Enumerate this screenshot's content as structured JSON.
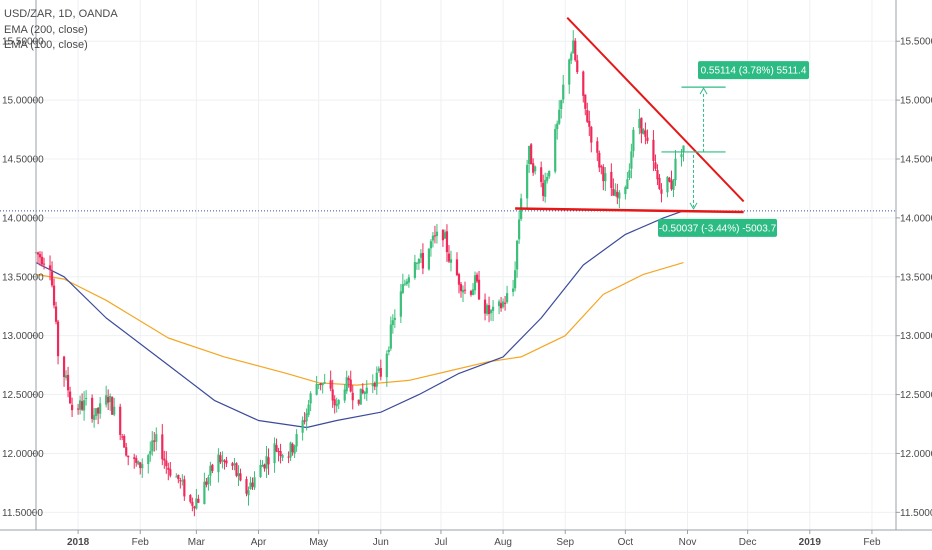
{
  "header": {
    "symbol_line": "USD/ZAR, 1D, OANDA",
    "ema200_label": "EMA (200, close)",
    "ema100_label": "EMA (100, close)"
  },
  "colors": {
    "up": "#3bbf7b",
    "down": "#ef2a5a",
    "ema200": "#f5a623",
    "ema100": "#3b4b9c",
    "trendline": "#e61717",
    "measure": "#2dbb84",
    "gridline": "#eef0f3",
    "axis_text": "#4a4a4a"
  },
  "chart_data": {
    "type": "candlestick",
    "title": "USD/ZAR, 1D, OANDA",
    "ylim": [
      11.35,
      15.85
    ],
    "y_ticks": [
      "15.50000",
      "15.00000",
      "14.50000",
      "14.00000",
      "13.50000",
      "13.00000",
      "12.50000",
      "12.00000",
      "11.50000"
    ],
    "y_tick_values": [
      15.5,
      15.0,
      14.5,
      14.0,
      13.5,
      13.0,
      12.5,
      12.0,
      11.5
    ],
    "x_ticks": [
      {
        "label": "2018",
        "date": "2018-01-01",
        "bold": true
      },
      {
        "label": "Feb",
        "date": "2018-02-01",
        "bold": false
      },
      {
        "label": "Mar",
        "date": "2018-03-01",
        "bold": false
      },
      {
        "label": "Apr",
        "date": "2018-04-01",
        "bold": false
      },
      {
        "label": "May",
        "date": "2018-05-01",
        "bold": false
      },
      {
        "label": "Jun",
        "date": "2018-06-01",
        "bold": false
      },
      {
        "label": "Jul",
        "date": "2018-07-01",
        "bold": false
      },
      {
        "label": "Aug",
        "date": "2018-08-01",
        "bold": false
      },
      {
        "label": "Sep",
        "date": "2018-09-01",
        "bold": false
      },
      {
        "label": "Oct",
        "date": "2018-10-01",
        "bold": false
      },
      {
        "label": "Nov",
        "date": "2018-11-01",
        "bold": false
      },
      {
        "label": "Dec",
        "date": "2018-12-01",
        "bold": false
      },
      {
        "label": "2019",
        "date": "2019-01-01",
        "bold": true
      },
      {
        "label": "Feb",
        "date": "2019-02-01",
        "bold": false
      }
    ],
    "price_path": [
      [
        "2017-12-11",
        13.7
      ],
      [
        "2017-12-18",
        13.62
      ],
      [
        "2017-12-20",
        13.25
      ],
      [
        "2017-12-22",
        12.85
      ],
      [
        "2017-12-27",
        12.55
      ],
      [
        "2017-12-29",
        12.38
      ],
      [
        "2018-01-05",
        12.42
      ],
      [
        "2018-01-10",
        12.32
      ],
      [
        "2018-01-16",
        12.48
      ],
      [
        "2018-01-22",
        12.22
      ],
      [
        "2018-01-26",
        11.98
      ],
      [
        "2018-01-31",
        11.88
      ],
      [
        "2018-02-06",
        12.02
      ],
      [
        "2018-02-10",
        12.12
      ],
      [
        "2018-02-14",
        11.9
      ],
      [
        "2018-02-20",
        11.78
      ],
      [
        "2018-02-26",
        11.58
      ],
      [
        "2018-03-02",
        11.62
      ],
      [
        "2018-03-07",
        11.8
      ],
      [
        "2018-03-12",
        11.96
      ],
      [
        "2018-03-16",
        11.9
      ],
      [
        "2018-03-20",
        11.88
      ],
      [
        "2018-03-23",
        11.72
      ],
      [
        "2018-03-26",
        11.68
      ],
      [
        "2018-04-02",
        11.88
      ],
      [
        "2018-04-09",
        12.05
      ],
      [
        "2018-04-16",
        12.0
      ],
      [
        "2018-04-20",
        12.12
      ],
      [
        "2018-04-25",
        12.35
      ],
      [
        "2018-04-28",
        12.55
      ],
      [
        "2018-05-01",
        12.62
      ],
      [
        "2018-05-06",
        12.55
      ],
      [
        "2018-05-10",
        12.38
      ],
      [
        "2018-05-14",
        12.6
      ],
      [
        "2018-05-18",
        12.52
      ],
      [
        "2018-05-22",
        12.48
      ],
      [
        "2018-05-28",
        12.62
      ],
      [
        "2018-06-01",
        12.68
      ],
      [
        "2018-06-05",
        12.95
      ],
      [
        "2018-06-08",
        13.18
      ],
      [
        "2018-06-13",
        13.45
      ],
      [
        "2018-06-18",
        13.68
      ],
      [
        "2018-06-22",
        13.62
      ],
      [
        "2018-06-26",
        13.78
      ],
      [
        "2018-07-02",
        13.88
      ],
      [
        "2018-07-06",
        13.6
      ],
      [
        "2018-07-10",
        13.48
      ],
      [
        "2018-07-14",
        13.35
      ],
      [
        "2018-07-18",
        13.45
      ],
      [
        "2018-07-24",
        13.2
      ],
      [
        "2018-07-28",
        13.18
      ],
      [
        "2018-08-01",
        13.28
      ],
      [
        "2018-08-06",
        13.4
      ],
      [
        "2018-08-08",
        13.8
      ],
      [
        "2018-08-10",
        14.2
      ],
      [
        "2018-08-14",
        14.55
      ],
      [
        "2018-08-17",
        14.4
      ],
      [
        "2018-08-21",
        14.25
      ],
      [
        "2018-08-24",
        14.45
      ],
      [
        "2018-08-29",
        14.85
      ],
      [
        "2018-09-02",
        15.35
      ],
      [
        "2018-09-05",
        15.45
      ],
      [
        "2018-09-08",
        15.1
      ],
      [
        "2018-09-12",
        14.85
      ],
      [
        "2018-09-16",
        14.55
      ],
      [
        "2018-09-20",
        14.38
      ],
      [
        "2018-09-24",
        14.2
      ],
      [
        "2018-09-28",
        14.15
      ],
      [
        "2018-10-02",
        14.35
      ],
      [
        "2018-10-05",
        14.7
      ],
      [
        "2018-10-08",
        14.85
      ],
      [
        "2018-10-11",
        14.65
      ],
      [
        "2018-10-15",
        14.45
      ],
      [
        "2018-10-18",
        14.25
      ],
      [
        "2018-10-21",
        14.32
      ],
      [
        "2018-10-24",
        14.28
      ],
      [
        "2018-10-27",
        14.55
      ],
      [
        "2018-10-30",
        14.62
      ]
    ],
    "ema100": [
      [
        "2017-12-11",
        13.62
      ],
      [
        "2017-12-25",
        13.5
      ],
      [
        "2018-01-15",
        13.15
      ],
      [
        "2018-02-15",
        12.75
      ],
      [
        "2018-03-10",
        12.45
      ],
      [
        "2018-04-01",
        12.28
      ],
      [
        "2018-04-25",
        12.22
      ],
      [
        "2018-05-10",
        12.28
      ],
      [
        "2018-06-01",
        12.35
      ],
      [
        "2018-06-20",
        12.5
      ],
      [
        "2018-07-10",
        12.68
      ],
      [
        "2018-08-01",
        12.82
      ],
      [
        "2018-08-20",
        13.15
      ],
      [
        "2018-09-10",
        13.6
      ],
      [
        "2018-10-01",
        13.86
      ],
      [
        "2018-10-20",
        14.0
      ],
      [
        "2018-10-30",
        14.06
      ]
    ],
    "ema200": [
      [
        "2017-12-11",
        13.52
      ],
      [
        "2017-12-25",
        13.48
      ],
      [
        "2018-01-15",
        13.3
      ],
      [
        "2018-02-15",
        12.98
      ],
      [
        "2018-03-15",
        12.82
      ],
      [
        "2018-04-15",
        12.68
      ],
      [
        "2018-05-01",
        12.6
      ],
      [
        "2018-05-20",
        12.58
      ],
      [
        "2018-06-15",
        12.62
      ],
      [
        "2018-07-05",
        12.7
      ],
      [
        "2018-07-25",
        12.78
      ],
      [
        "2018-08-10",
        12.82
      ],
      [
        "2018-09-01",
        13.0
      ],
      [
        "2018-09-20",
        13.35
      ],
      [
        "2018-10-10",
        13.52
      ],
      [
        "2018-10-30",
        13.62
      ]
    ],
    "horizontal_price_line": 14.06,
    "trendline_upper": {
      "start": [
        "2018-09-02",
        15.7
      ],
      "end": [
        "2018-11-29",
        14.14
      ]
    },
    "trendline_lower": {
      "start": [
        "2018-08-07",
        14.08
      ],
      "end": [
        "2018-11-29",
        14.05
      ]
    },
    "measure_up": {
      "label": "0.55114 (3.78%) 5511.4",
      "from": 14.56,
      "to": 15.11,
      "start": "2018-10-19",
      "end": "2018-11-20"
    },
    "measure_down": {
      "label": "-0.50037 (-3.44%) -5003.7",
      "from": 14.56,
      "to": 14.06,
      "date": "2018-11-04"
    }
  }
}
